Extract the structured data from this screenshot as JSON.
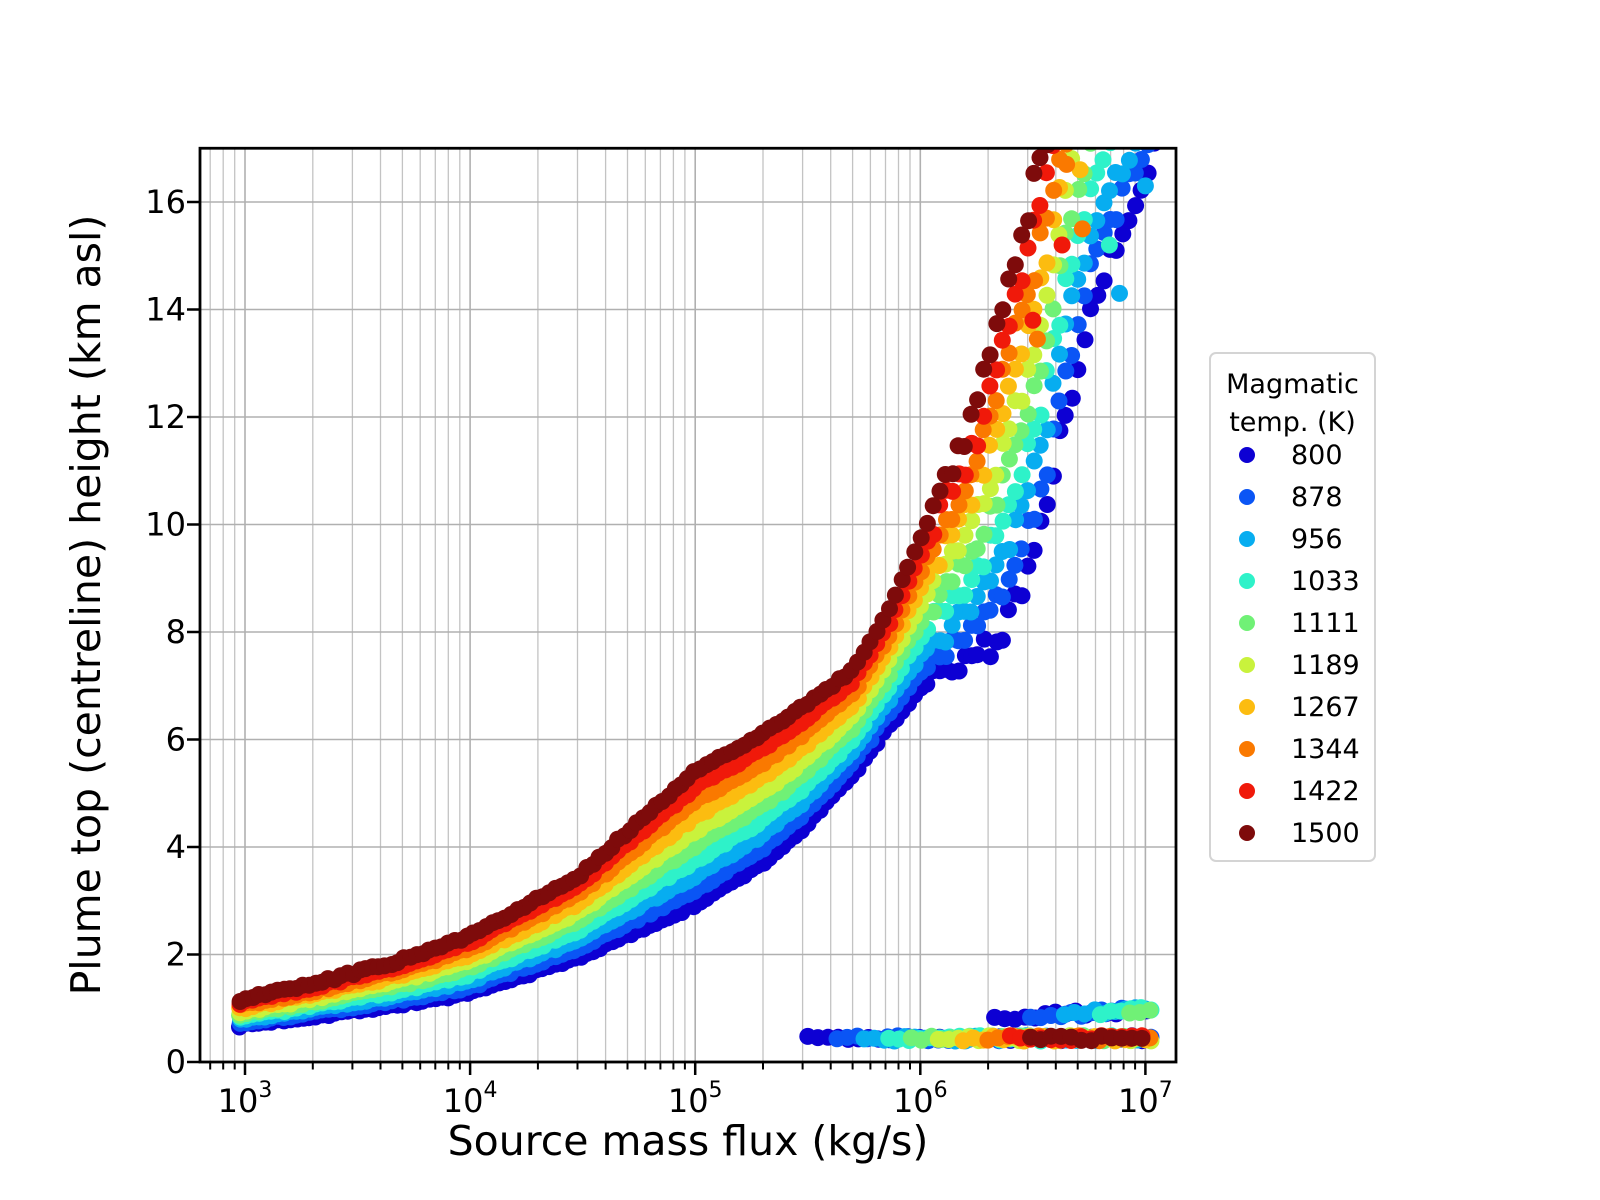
{
  "chart_data": {
    "type": "scatter",
    "title": "",
    "xlabel": "Source mass flux (kg/s)",
    "ylabel": "Plume top (centreline) height (km asl)",
    "xscale": "log",
    "xlim_log": [
      2.8,
      7.137
    ],
    "ylim": [
      0,
      17
    ],
    "xticks": [
      {
        "log": 3,
        "base": "10",
        "exp": "3"
      },
      {
        "log": 4,
        "base": "10",
        "exp": "4"
      },
      {
        "log": 5,
        "base": "10",
        "exp": "5"
      },
      {
        "log": 6,
        "base": "10",
        "exp": "6"
      },
      {
        "log": 7,
        "base": "10",
        "exp": "7"
      }
    ],
    "yticks": [
      0,
      2,
      4,
      6,
      8,
      10,
      12,
      14,
      16
    ],
    "grid": {
      "show": true,
      "major_color": "#b0b0b0",
      "minor_color": "#c3c3c3"
    },
    "legend": {
      "title_lines": [
        "Magmatic",
        "temp. (K)"
      ],
      "position": "right-outside",
      "entries": [
        "800",
        "878",
        "956",
        "1033",
        "1111",
        "1189",
        "1267",
        "1344",
        "1422",
        "1500"
      ]
    },
    "collapse_branch": {
      "height_km": 0.44,
      "logF_end": 7.025,
      "comment": "low flat band of collapsed-fountain heights"
    },
    "upper_branch_line": {
      "h_ref": 0.8,
      "logF_ref": 6.33,
      "slope_per_decade": 0.27,
      "logF_end": 7.025
    },
    "series": [
      {
        "name": "800",
        "temp_K": 800,
        "color": "#0d00d3",
        "main_curve": [
          [
            2.978,
            0.68
          ],
          [
            3.3,
            0.85
          ],
          [
            3.7,
            1.08
          ],
          [
            4.0,
            1.28
          ],
          [
            4.48,
            1.95
          ],
          [
            5.0,
            2.92
          ],
          [
            5.3,
            3.7
          ],
          [
            5.48,
            4.35
          ],
          [
            5.7,
            5.35
          ],
          [
            5.85,
            6.2
          ],
          [
            6.0,
            6.94
          ],
          [
            6.11,
            7.25
          ],
          [
            6.24,
            7.6
          ],
          [
            6.36,
            7.9
          ],
          [
            6.49,
            9.3
          ],
          [
            6.56,
            10.3
          ],
          [
            6.64,
            12.0
          ],
          [
            6.76,
            14.0
          ],
          [
            6.88,
            15.3
          ],
          [
            6.96,
            16.0
          ],
          [
            7.02,
            16.8
          ],
          [
            7.045,
            17.15
          ]
        ],
        "collapse_start_log": 5.5,
        "upper_start_log": 6.33,
        "outliers": []
      },
      {
        "name": "878",
        "temp_K": 878,
        "color": "#0a55f5",
        "main_curve": [
          [
            2.978,
            0.73
          ],
          [
            3.3,
            0.92
          ],
          [
            3.7,
            1.17
          ],
          [
            4.0,
            1.4
          ],
          [
            4.48,
            2.12
          ],
          [
            5.0,
            3.2
          ],
          [
            5.3,
            3.97
          ],
          [
            5.48,
            4.6
          ],
          [
            5.7,
            5.57
          ],
          [
            5.85,
            6.43
          ],
          [
            6.0,
            7.25
          ],
          [
            6.11,
            7.64
          ],
          [
            6.24,
            8.09
          ],
          [
            6.36,
            8.58
          ],
          [
            6.49,
            10.04
          ],
          [
            6.56,
            11.07
          ],
          [
            6.64,
            12.81
          ],
          [
            6.76,
            14.73
          ],
          [
            6.88,
            15.97
          ],
          [
            6.96,
            16.62
          ],
          [
            7.02,
            17.3
          ]
        ],
        "collapse_start_log": 5.63,
        "upper_start_log": 6.49,
        "outliers": []
      },
      {
        "name": "956",
        "temp_K": 956,
        "color": "#07adf0",
        "main_curve": [
          [
            2.978,
            0.78
          ],
          [
            3.3,
            0.98
          ],
          [
            3.7,
            1.26
          ],
          [
            4.0,
            1.52
          ],
          [
            4.48,
            2.28
          ],
          [
            5.0,
            3.47
          ],
          [
            5.3,
            4.23
          ],
          [
            5.48,
            4.85
          ],
          [
            5.7,
            5.78
          ],
          [
            5.85,
            6.67
          ],
          [
            6.0,
            7.56
          ],
          [
            6.11,
            8.04
          ],
          [
            6.24,
            8.58
          ],
          [
            6.36,
            9.25
          ],
          [
            6.49,
            10.79
          ],
          [
            6.56,
            11.83
          ],
          [
            6.64,
            13.62
          ],
          [
            6.76,
            15.47
          ],
          [
            6.88,
            16.63
          ],
          [
            6.96,
            17.24
          ]
        ],
        "collapse_start_log": 5.75,
        "upper_start_log": 6.64,
        "outliers": [
          [
            6.885,
            14.3
          ],
          [
            7.0,
            16.3
          ]
        ]
      },
      {
        "name": "1033",
        "temp_K": 1033,
        "color": "#2ef2c9",
        "main_curve": [
          [
            2.978,
            0.84
          ],
          [
            3.3,
            1.05
          ],
          [
            3.7,
            1.35
          ],
          [
            4.0,
            1.64
          ],
          [
            4.48,
            2.45
          ],
          [
            5.0,
            3.75
          ],
          [
            5.3,
            4.5
          ],
          [
            5.48,
            5.1
          ],
          [
            5.7,
            6.0
          ],
          [
            5.85,
            6.9
          ],
          [
            6.0,
            7.88
          ],
          [
            6.11,
            8.43
          ],
          [
            6.24,
            9.07
          ],
          [
            6.36,
            9.93
          ],
          [
            6.49,
            11.53
          ],
          [
            6.56,
            12.6
          ],
          [
            6.64,
            14.43
          ],
          [
            6.76,
            16.2
          ],
          [
            6.88,
            17.3
          ]
        ],
        "collapse_start_log": 5.86,
        "upper_start_log": 6.8,
        "outliers": [
          [
            6.84,
            15.2
          ]
        ]
      },
      {
        "name": "1111",
        "temp_K": 1111,
        "color": "#70f176",
        "main_curve": [
          [
            2.978,
            0.89
          ],
          [
            3.3,
            1.12
          ],
          [
            3.7,
            1.44
          ],
          [
            4.0,
            1.76
          ],
          [
            4.48,
            2.62
          ],
          [
            5.0,
            4.02
          ],
          [
            5.3,
            4.77
          ],
          [
            5.48,
            5.35
          ],
          [
            5.7,
            6.22
          ],
          [
            5.85,
            7.13
          ],
          [
            6.0,
            8.19
          ],
          [
            6.11,
            8.83
          ],
          [
            6.24,
            9.55
          ],
          [
            6.36,
            10.61
          ],
          [
            6.49,
            12.27
          ],
          [
            6.56,
            13.36
          ],
          [
            6.64,
            15.24
          ],
          [
            6.76,
            16.93
          ]
        ],
        "collapse_start_log": 5.96,
        "upper_start_log": 6.93,
        "outliers": []
      },
      {
        "name": "1189",
        "temp_K": 1189,
        "color": "#c9f23c",
        "main_curve": [
          [
            2.978,
            0.94
          ],
          [
            3.3,
            1.18
          ],
          [
            3.7,
            1.54
          ],
          [
            4.0,
            1.88
          ],
          [
            4.48,
            2.78
          ],
          [
            5.0,
            4.3
          ],
          [
            5.3,
            5.03
          ],
          [
            5.48,
            5.6
          ],
          [
            5.7,
            6.43
          ],
          [
            5.85,
            7.37
          ],
          [
            6.0,
            8.5
          ],
          [
            6.11,
            9.22
          ],
          [
            6.24,
            10.05
          ],
          [
            6.36,
            11.29
          ],
          [
            6.49,
            13.03
          ],
          [
            6.56,
            14.14
          ],
          [
            6.64,
            16.06
          ]
        ],
        "collapse_start_log": 6.08,
        "upper_start_log": null,
        "outliers": []
      },
      {
        "name": "1267",
        "temp_K": 1267,
        "color": "#fcbc10",
        "main_curve": [
          [
            2.978,
            0.99
          ],
          [
            3.3,
            1.25
          ],
          [
            3.7,
            1.63
          ],
          [
            4.0,
            1.99
          ],
          [
            4.48,
            2.95
          ],
          [
            5.0,
            4.57
          ],
          [
            5.3,
            5.3
          ],
          [
            5.48,
            5.85
          ],
          [
            5.7,
            6.65
          ],
          [
            5.85,
            7.6
          ],
          [
            6.0,
            8.81
          ],
          [
            6.11,
            9.62
          ],
          [
            6.24,
            10.54
          ],
          [
            6.36,
            11.97
          ],
          [
            6.49,
            13.77
          ],
          [
            6.56,
            14.9
          ],
          [
            6.64,
            16.87
          ]
        ],
        "collapse_start_log": 6.19,
        "upper_start_log": null,
        "outliers": [
          [
            6.71,
            16.6
          ]
        ]
      },
      {
        "name": "1344",
        "temp_K": 1344,
        "color": "#fa7900",
        "main_curve": [
          [
            2.978,
            1.05
          ],
          [
            3.3,
            1.32
          ],
          [
            3.7,
            1.72
          ],
          [
            4.0,
            2.11
          ],
          [
            4.48,
            3.12
          ],
          [
            5.0,
            4.85
          ],
          [
            5.3,
            5.57
          ],
          [
            5.48,
            6.1
          ],
          [
            5.7,
            6.87
          ],
          [
            5.85,
            7.83
          ],
          [
            6.0,
            9.13
          ],
          [
            6.11,
            10.01
          ],
          [
            6.24,
            11.02
          ],
          [
            6.36,
            12.65
          ],
          [
            6.49,
            14.51
          ],
          [
            6.56,
            15.67
          ]
        ],
        "collapse_start_log": 6.3,
        "upper_start_log": null,
        "outliers": [
          [
            6.52,
            13.45
          ],
          [
            6.72,
            15.5
          ],
          [
            6.65,
            16.7
          ]
        ]
      },
      {
        "name": "1422",
        "temp_K": 1422,
        "color": "#f0190a",
        "main_curve": [
          [
            2.978,
            1.1
          ],
          [
            3.3,
            1.38
          ],
          [
            3.7,
            1.81
          ],
          [
            4.0,
            2.23
          ],
          [
            4.48,
            3.28
          ],
          [
            5.0,
            5.12
          ],
          [
            5.3,
            5.83
          ],
          [
            5.48,
            6.35
          ],
          [
            5.7,
            7.08
          ],
          [
            5.85,
            8.07
          ],
          [
            6.0,
            9.44
          ],
          [
            6.11,
            10.41
          ],
          [
            6.24,
            11.51
          ],
          [
            6.36,
            13.32
          ],
          [
            6.49,
            15.26
          ],
          [
            6.56,
            16.43
          ]
        ],
        "collapse_start_log": 6.4,
        "upper_start_log": null,
        "outliers": [
          [
            6.5,
            13.8
          ],
          [
            6.63,
            15.2
          ]
        ]
      },
      {
        "name": "1500",
        "temp_K": 1500,
        "color": "#7e0b0b",
        "main_curve": [
          [
            2.978,
            1.15
          ],
          [
            3.3,
            1.45
          ],
          [
            3.7,
            1.9
          ],
          [
            4.0,
            2.35
          ],
          [
            4.48,
            3.45
          ],
          [
            5.0,
            5.4
          ],
          [
            5.3,
            6.1
          ],
          [
            5.48,
            6.6
          ],
          [
            5.7,
            7.3
          ],
          [
            5.85,
            8.3
          ],
          [
            6.0,
            9.75
          ],
          [
            6.11,
            10.8
          ],
          [
            6.24,
            12.0
          ],
          [
            6.36,
            14.0
          ],
          [
            6.49,
            16.0
          ],
          [
            6.56,
            17.2
          ]
        ],
        "collapse_start_log": 6.49,
        "upper_start_log": null,
        "outliers": []
      }
    ],
    "render_hints": {
      "marker_radius_px": 8.5,
      "main_step_dec": 0.028,
      "branch_step_dec": 0.045,
      "jitter_low": 0.03,
      "quant_onset_log": 6.05,
      "quant_step_km": 0.28,
      "branch_jitter_km": 0.05,
      "seed": 7
    }
  }
}
